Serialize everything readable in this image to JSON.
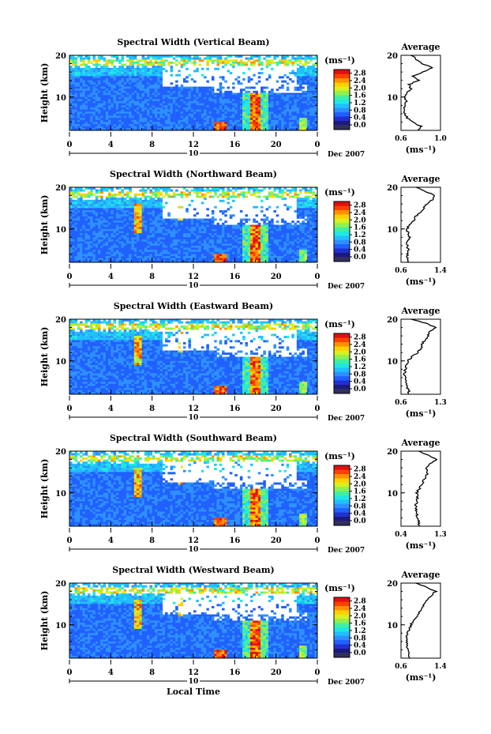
{
  "page": {
    "xlabel_bottom": "Local Time"
  },
  "colorbar": {
    "unit_label": "(ms⁻¹)",
    "ticks": [
      "2.8",
      "2.4",
      "2.0",
      "1.6",
      "1.2",
      "0.8",
      "0.4",
      "0.0"
    ],
    "colors": [
      "#1a1a80",
      "#2030d0",
      "#2060ff",
      "#2e90ff",
      "#20c0ff",
      "#20e8e0",
      "#40f0a0",
      "#90f050",
      "#d8f020",
      "#ffd000",
      "#ff9000",
      "#ff4000",
      "#e01010"
    ],
    "bottom_color": "#303060"
  },
  "chart_data": [
    {
      "type": "heatmap",
      "title": "Spectral Width (Vertical Beam)",
      "ylabel": "Height (km)",
      "ylim": [
        2,
        20
      ],
      "xlim": [
        0,
        24
      ],
      "xticks": [
        "0",
        "4",
        "8",
        "12",
        "16",
        "20",
        "0"
      ],
      "date_label": "Dec 2007",
      "day_label": "10",
      "colorbar_range": [
        0.0,
        3.0
      ],
      "average": {
        "title": "Average",
        "xlabel": "(ms⁻¹)",
        "xticks": [
          "0.6",
          "1.0"
        ],
        "xlim": [
          0.6,
          1.0
        ],
        "yticks": [
          "20",
          "10"
        ],
        "profile": [
          [
            2,
            0.78
          ],
          [
            3,
            0.8
          ],
          [
            4,
            0.72
          ],
          [
            5,
            0.66
          ],
          [
            6,
            0.64
          ],
          [
            7,
            0.63
          ],
          [
            8,
            0.64
          ],
          [
            9,
            0.65
          ],
          [
            10,
            0.64
          ],
          [
            11,
            0.66
          ],
          [
            12,
            0.7
          ],
          [
            13,
            0.68
          ],
          [
            14,
            0.78
          ],
          [
            15,
            0.72
          ],
          [
            16,
            0.82
          ],
          [
            17,
            0.92
          ],
          [
            18,
            0.82
          ],
          [
            19,
            0.76
          ],
          [
            20,
            0.7
          ]
        ]
      }
    },
    {
      "type": "heatmap",
      "title": "Spectral Width (Northward Beam)",
      "ylabel": "Height (km)",
      "ylim": [
        2,
        20
      ],
      "xlim": [
        0,
        24
      ],
      "xticks": [
        "0",
        "4",
        "8",
        "12",
        "16",
        "20",
        "0"
      ],
      "date_label": "Dec 2007",
      "day_label": "10",
      "colorbar_range": [
        0.0,
        3.0
      ],
      "average": {
        "title": "Average",
        "xlabel": "(ms⁻¹)",
        "xticks": [
          "0.6",
          "1.4"
        ],
        "xlim": [
          0.6,
          1.4
        ],
        "yticks": [
          "20",
          "10"
        ],
        "profile": [
          [
            2,
            0.76
          ],
          [
            3,
            0.74
          ],
          [
            4,
            0.72
          ],
          [
            5,
            0.74
          ],
          [
            6,
            0.73
          ],
          [
            7,
            0.72
          ],
          [
            8,
            0.78
          ],
          [
            9,
            0.75
          ],
          [
            10,
            0.72
          ],
          [
            11,
            0.78
          ],
          [
            12,
            0.86
          ],
          [
            13,
            0.9
          ],
          [
            14,
            1.0
          ],
          [
            15,
            1.06
          ],
          [
            16,
            1.12
          ],
          [
            17,
            1.24
          ],
          [
            18,
            1.3
          ],
          [
            19,
            1.1
          ],
          [
            20,
            0.9
          ]
        ]
      }
    },
    {
      "type": "heatmap",
      "title": "Spectral Width (Eastward Beam)",
      "ylabel": "Height (km)",
      "ylim": [
        2,
        20
      ],
      "xlim": [
        0,
        24
      ],
      "xticks": [
        "0",
        "4",
        "8",
        "12",
        "16",
        "20",
        "0"
      ],
      "date_label": "Dec 2007",
      "day_label": "10",
      "colorbar_range": [
        0.0,
        3.0
      ],
      "average": {
        "title": "Average",
        "xlabel": "(ms⁻¹)",
        "xticks": [
          "0.6",
          "1.3"
        ],
        "xlim": [
          0.6,
          1.3
        ],
        "yticks": [
          "20",
          "10"
        ],
        "profile": [
          [
            2,
            0.72
          ],
          [
            3,
            0.74
          ],
          [
            4,
            0.7
          ],
          [
            5,
            0.68
          ],
          [
            6,
            0.67
          ],
          [
            7,
            0.66
          ],
          [
            8,
            0.68
          ],
          [
            9,
            0.7
          ],
          [
            10,
            0.72
          ],
          [
            11,
            0.8
          ],
          [
            12,
            0.9
          ],
          [
            13,
            0.95
          ],
          [
            14,
            0.98
          ],
          [
            15,
            1.02
          ],
          [
            16,
            1.08
          ],
          [
            17,
            1.1
          ],
          [
            18,
            1.22
          ],
          [
            19,
            1.05
          ],
          [
            20,
            0.78
          ]
        ]
      }
    },
    {
      "type": "heatmap",
      "title": "Spectral Width (Southward Beam)",
      "ylabel": "Height (km)",
      "ylim": [
        2,
        20
      ],
      "xlim": [
        0,
        24
      ],
      "xticks": [
        "0",
        "4",
        "8",
        "12",
        "16",
        "20",
        "0"
      ],
      "date_label": "Dec 2007",
      "day_label": "10",
      "colorbar_range": [
        0.0,
        3.0
      ],
      "average": {
        "title": "Average",
        "xlabel": "(ms⁻¹)",
        "xticks": [
          "0.4",
          "1.3"
        ],
        "xlim": [
          0.4,
          1.3
        ],
        "yticks": [
          "20",
          "10"
        ],
        "profile": [
          [
            2,
            0.82
          ],
          [
            3,
            0.8
          ],
          [
            4,
            0.78
          ],
          [
            5,
            0.76
          ],
          [
            6,
            0.75
          ],
          [
            7,
            0.74
          ],
          [
            8,
            0.76
          ],
          [
            9,
            0.78
          ],
          [
            10,
            0.76
          ],
          [
            11,
            0.82
          ],
          [
            12,
            0.88
          ],
          [
            13,
            0.92
          ],
          [
            14,
            0.98
          ],
          [
            15,
            1.0
          ],
          [
            16,
            0.96
          ],
          [
            17,
            1.08
          ],
          [
            18,
            1.2
          ],
          [
            19,
            1.02
          ],
          [
            20,
            0.8
          ]
        ]
      }
    },
    {
      "type": "heatmap",
      "title": "Spectral Width (Westward Beam)",
      "ylabel": "Height (km)",
      "ylim": [
        2,
        20
      ],
      "xlim": [
        0,
        24
      ],
      "xticks": [
        "0",
        "4",
        "8",
        "12",
        "16",
        "20",
        "0"
      ],
      "date_label": "Dec 2007",
      "day_label": "10",
      "colorbar_range": [
        0.0,
        3.0
      ],
      "average": {
        "title": "Average",
        "xlabel": "(ms⁻¹)",
        "xticks": [
          "0.6",
          "1.4"
        ],
        "xlim": [
          0.6,
          1.4
        ],
        "yticks": [
          "20",
          "10"
        ],
        "profile": [
          [
            2,
            0.78
          ],
          [
            3,
            0.76
          ],
          [
            4,
            0.74
          ],
          [
            5,
            0.72
          ],
          [
            6,
            0.73
          ],
          [
            7,
            0.72
          ],
          [
            8,
            0.74
          ],
          [
            9,
            0.78
          ],
          [
            10,
            0.8
          ],
          [
            11,
            0.86
          ],
          [
            12,
            0.92
          ],
          [
            13,
            0.98
          ],
          [
            14,
            1.02
          ],
          [
            15,
            1.08
          ],
          [
            16,
            1.14
          ],
          [
            17,
            1.22
          ],
          [
            18,
            1.3
          ],
          [
            19,
            1.12
          ],
          [
            20,
            0.9
          ]
        ]
      }
    }
  ]
}
